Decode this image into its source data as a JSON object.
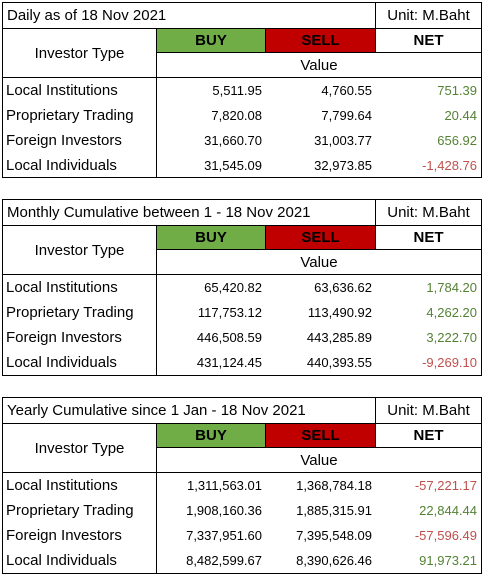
{
  "colors": {
    "buy_bg": "#70ad47",
    "sell_bg": "#c00000",
    "positive": "#548235",
    "negative": "#c0504d"
  },
  "headers": {
    "investor_type": "Investor Type",
    "buy": "BUY",
    "sell": "SELL",
    "net": "NET",
    "value": "Value"
  },
  "tables": [
    {
      "title": "Daily as of 18 Nov 2021",
      "unit": "Unit: M.Baht",
      "rows": [
        {
          "name": "Local Institutions",
          "buy": "5,511.95",
          "sell": "4,760.55",
          "net": "751.39",
          "sign": "pos"
        },
        {
          "name": "Proprietary Trading",
          "buy": "7,820.08",
          "sell": "7,799.64",
          "net": "20.44",
          "sign": "pos"
        },
        {
          "name": "Foreign Investors",
          "buy": "31,660.70",
          "sell": "31,003.77",
          "net": "656.92",
          "sign": "pos"
        },
        {
          "name": "Local Individuals",
          "buy": "31,545.09",
          "sell": "32,973.85",
          "net": "-1,428.76",
          "sign": "neg"
        }
      ]
    },
    {
      "title": "Monthly Cumulative between 1 - 18 Nov 2021",
      "unit": "Unit: M.Baht",
      "rows": [
        {
          "name": "Local Institutions",
          "buy": "65,420.82",
          "sell": "63,636.62",
          "net": "1,784.20",
          "sign": "pos"
        },
        {
          "name": "Proprietary Trading",
          "buy": "117,753.12",
          "sell": "113,490.92",
          "net": "4,262.20",
          "sign": "pos"
        },
        {
          "name": "Foreign Investors",
          "buy": "446,508.59",
          "sell": "443,285.89",
          "net": "3,222.70",
          "sign": "pos"
        },
        {
          "name": "Local Individuals",
          "buy": "431,124.45",
          "sell": "440,393.55",
          "net": "-9,269.10",
          "sign": "neg"
        }
      ]
    },
    {
      "title": "Yearly Cumulative since 1 Jan - 18 Nov 2021",
      "unit": "Unit: M.Baht",
      "rows": [
        {
          "name": "Local Institutions",
          "buy": "1,311,563.01",
          "sell": "1,368,784.18",
          "net": "-57,221.17",
          "sign": "neg"
        },
        {
          "name": "Proprietary Trading",
          "buy": "1,908,160.36",
          "sell": "1,885,315.91",
          "net": "22,844.44",
          "sign": "pos"
        },
        {
          "name": "Foreign Investors",
          "buy": "7,337,951.60",
          "sell": "7,395,548.09",
          "net": "-57,596.49",
          "sign": "neg"
        },
        {
          "name": "Local Individuals",
          "buy": "8,482,599.67",
          "sell": "8,390,626.46",
          "net": "91,973.21",
          "sign": "pos"
        }
      ]
    }
  ]
}
